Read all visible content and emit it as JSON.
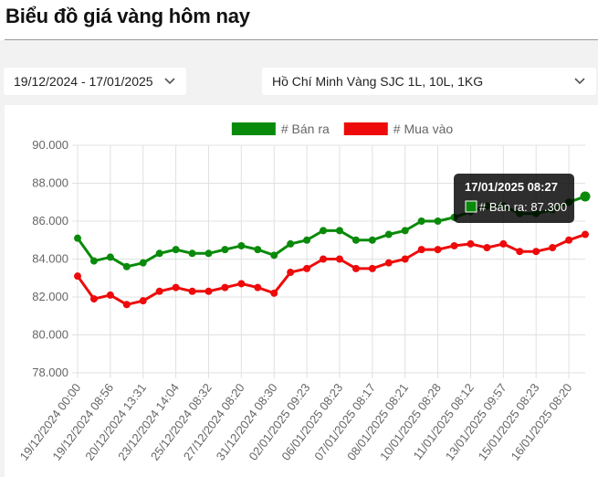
{
  "page": {
    "title": "Biểu đồ giá vàng hôm nay"
  },
  "filters": {
    "date_range": "19/12/2024 - 17/01/2025",
    "location": "Hồ Chí Minh Vàng SJC 1L, 10L, 1KG",
    "chevron_icon": "chevron-down-icon"
  },
  "tooltip": {
    "title": "17/01/2025 08:27",
    "label": "# Bán ra: 87.300",
    "swatch_color": "#0a8a0a"
  },
  "chart_data": {
    "type": "line",
    "title": "",
    "xlabel": "",
    "ylabel": "",
    "ylim": [
      78000,
      90000
    ],
    "y_ticks": [
      "78.000",
      "80.000",
      "82.000",
      "84.000",
      "86.000",
      "88.000",
      "90.000"
    ],
    "grid": true,
    "legend_placement": "top",
    "categories": [
      "19/12/2024 00:00",
      "",
      "19/12/2024 08:56",
      "",
      "20/12/2024 13:31",
      "",
      "23/12/2024 14:04",
      "",
      "25/12/2024 08:32",
      "",
      "27/12/2024 08:20",
      "",
      "31/12/2024 08:30",
      "",
      "02/01/2025 09:23",
      "",
      "06/01/2025 08:23",
      "",
      "07/01/2025 08:17",
      "",
      "08/01/2025 08:21",
      "",
      "10/01/2025 08:28",
      "",
      "11/01/2025 08:12",
      "",
      "13/01/2025 09:57",
      "",
      "15/01/2025 08:23",
      "",
      "16/01/2025 08:20",
      ""
    ],
    "series": [
      {
        "name": "# Bán ra",
        "color": "#0a8a0a",
        "values": [
          85100,
          83900,
          84100,
          83600,
          83800,
          84300,
          84500,
          84300,
          84300,
          84500,
          84700,
          84500,
          84200,
          84800,
          85000,
          85500,
          85500,
          85000,
          85000,
          85300,
          85500,
          86000,
          86000,
          86200,
          86500,
          86800,
          86800,
          86400,
          86400,
          86600,
          87000,
          87300
        ]
      },
      {
        "name": "# Mua vào",
        "color": "#ee0a0a",
        "values": [
          83100,
          81900,
          82100,
          81600,
          81800,
          82300,
          82500,
          82300,
          82300,
          82500,
          82700,
          82500,
          82200,
          83300,
          83500,
          84000,
          84000,
          83500,
          83500,
          83800,
          84000,
          84500,
          84500,
          84700,
          84800,
          84600,
          84800,
          84400,
          84400,
          84600,
          85000,
          85300
        ]
      }
    ]
  }
}
